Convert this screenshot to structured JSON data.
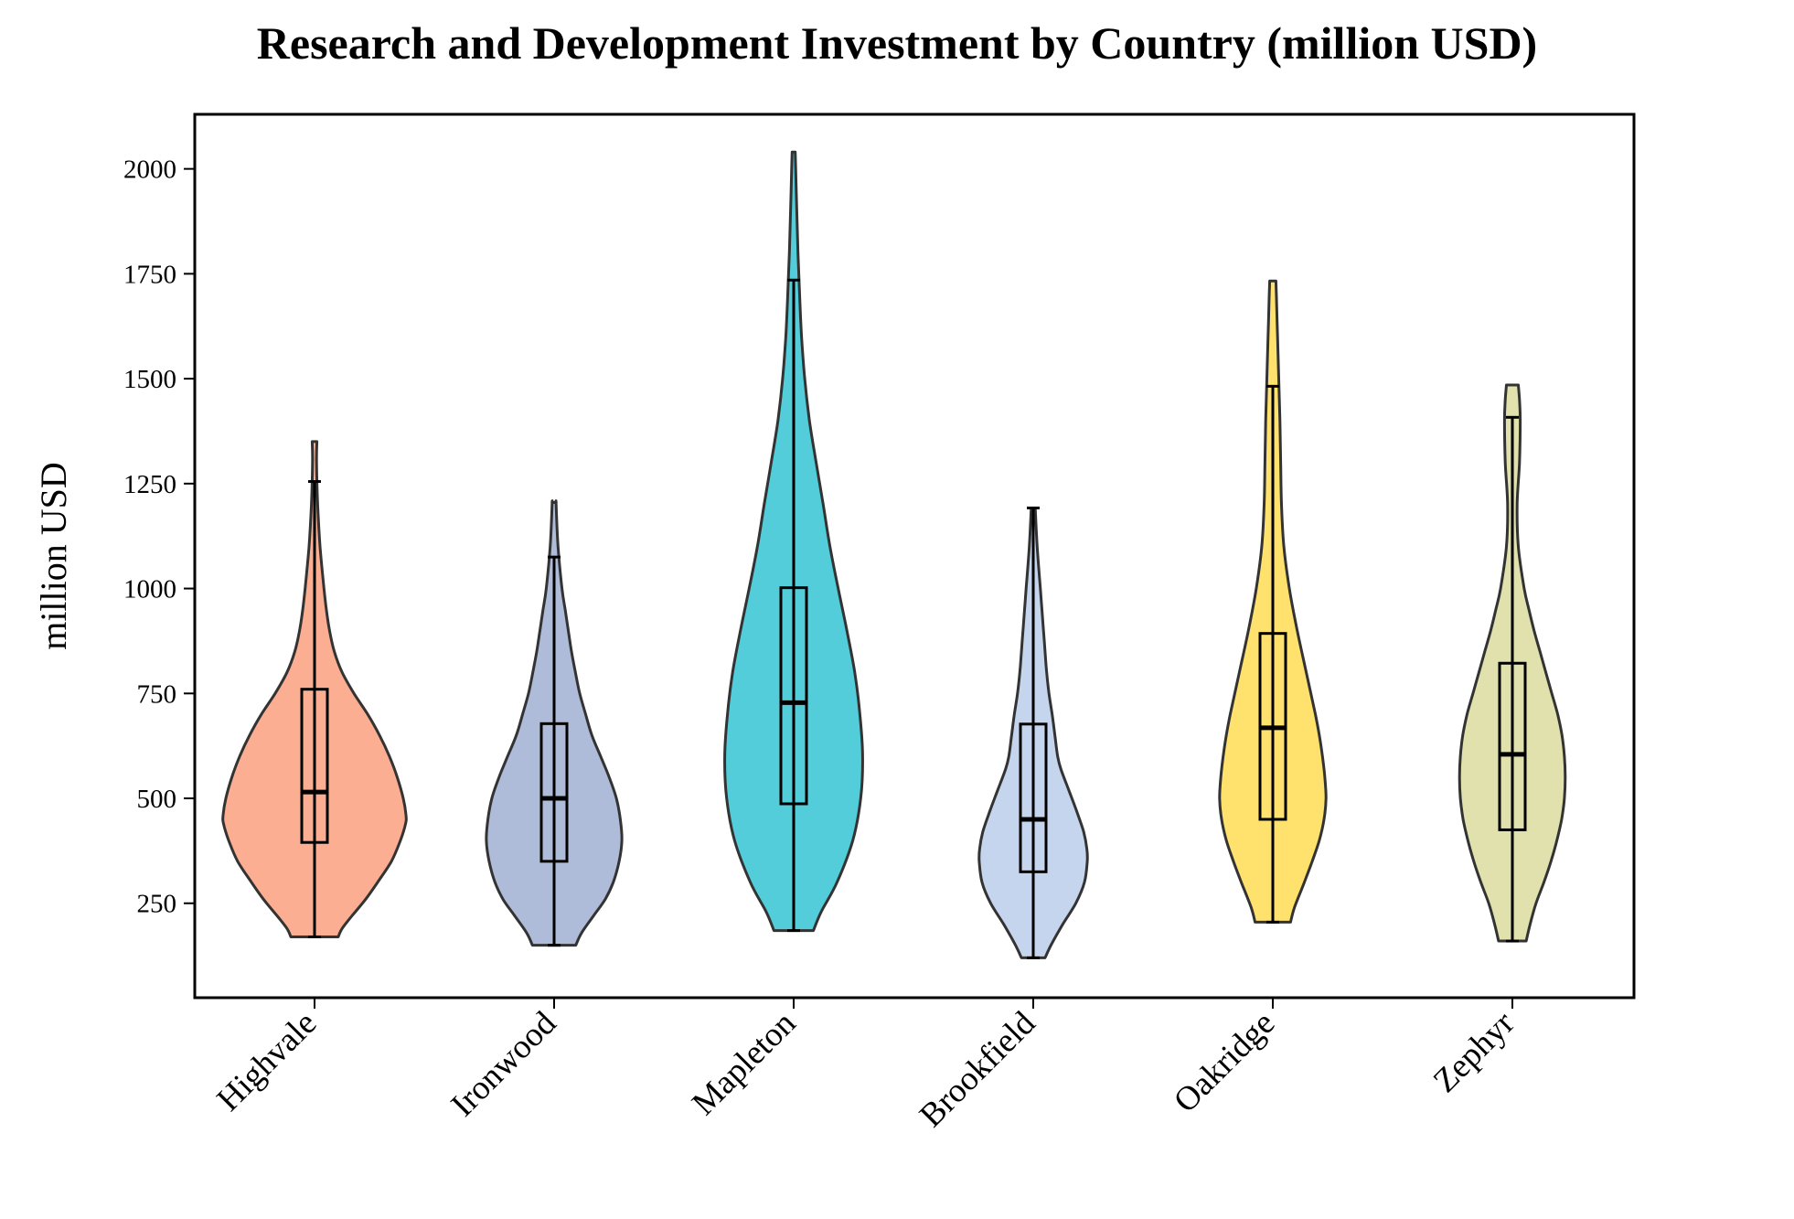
{
  "chart_data": {
    "type": "violin",
    "title": "Research and Development Investment by Country (million USD)",
    "xlabel": "",
    "ylabel": "million USD",
    "ylim": [
      25,
      2130
    ],
    "yticks": [
      250,
      500,
      750,
      1000,
      1250,
      1500,
      1750,
      2000
    ],
    "ytick_labels": [
      "250",
      "500",
      "750",
      "1000",
      "1250",
      "1500",
      "1750",
      "2000"
    ],
    "grid": false,
    "categories": [
      "Highvale",
      "Ironwood",
      "Mapleton",
      "Brookfield",
      "Oakridge",
      "Zephyr"
    ],
    "colors": [
      "#fa9a76",
      "#9aaad0",
      "#27c1d0",
      "#b6caea",
      "#ffd94a",
      "#d8d999"
    ],
    "series": [
      {
        "name": "Highvale",
        "min": 170,
        "q1": 395,
        "median": 515,
        "q3": 760,
        "max": 1255,
        "violin_max": 1350,
        "profile": [
          [
            170,
            60
          ],
          [
            190,
            70
          ],
          [
            220,
            95
          ],
          [
            260,
            130
          ],
          [
            300,
            160
          ],
          [
            350,
            195
          ],
          [
            400,
            218
          ],
          [
            440,
            231
          ],
          [
            460,
            232
          ],
          [
            500,
            225
          ],
          [
            550,
            210
          ],
          [
            600,
            190
          ],
          [
            650,
            165
          ],
          [
            700,
            135
          ],
          [
            750,
            100
          ],
          [
            800,
            70
          ],
          [
            850,
            50
          ],
          [
            900,
            38
          ],
          [
            950,
            30
          ],
          [
            1000,
            24
          ],
          [
            1100,
            14
          ],
          [
            1200,
            8
          ],
          [
            1300,
            5
          ],
          [
            1350,
            6
          ]
        ]
      },
      {
        "name": "Ironwood",
        "min": 150,
        "q1": 350,
        "median": 500,
        "q3": 678,
        "max": 1075,
        "violin_max": 1205,
        "profile": [
          [
            150,
            55
          ],
          [
            180,
            70
          ],
          [
            220,
            100
          ],
          [
            260,
            130
          ],
          [
            300,
            150
          ],
          [
            350,
            165
          ],
          [
            400,
            172
          ],
          [
            450,
            168
          ],
          [
            500,
            158
          ],
          [
            550,
            140
          ],
          [
            600,
            118
          ],
          [
            650,
            96
          ],
          [
            700,
            80
          ],
          [
            750,
            65
          ],
          [
            800,
            54
          ],
          [
            850,
            44
          ],
          [
            900,
            36
          ],
          [
            950,
            28
          ],
          [
            1000,
            20
          ],
          [
            1100,
            10
          ],
          [
            1200,
            5
          ],
          [
            1205,
            5
          ]
        ]
      },
      {
        "name": "Mapleton",
        "min": 185,
        "q1": 487,
        "median": 728,
        "q3": 1002,
        "max": 1735,
        "violin_max": 2040,
        "profile": [
          [
            185,
            50
          ],
          [
            230,
            70
          ],
          [
            300,
            110
          ],
          [
            400,
            150
          ],
          [
            500,
            170
          ],
          [
            600,
            175
          ],
          [
            700,
            168
          ],
          [
            800,
            155
          ],
          [
            900,
            135
          ],
          [
            1000,
            113
          ],
          [
            1100,
            92
          ],
          [
            1200,
            75
          ],
          [
            1300,
            57
          ],
          [
            1400,
            40
          ],
          [
            1500,
            28
          ],
          [
            1600,
            20
          ],
          [
            1700,
            15
          ],
          [
            1800,
            11
          ],
          [
            1900,
            8
          ],
          [
            2000,
            5
          ],
          [
            2040,
            4
          ]
        ]
      },
      {
        "name": "Brookfield",
        "min": 120,
        "q1": 325,
        "median": 450,
        "q3": 677,
        "max": 1192,
        "violin_max": 1192,
        "profile": [
          [
            120,
            30
          ],
          [
            150,
            45
          ],
          [
            200,
            75
          ],
          [
            250,
            108
          ],
          [
            300,
            130
          ],
          [
            350,
            137
          ],
          [
            380,
            136
          ],
          [
            420,
            128
          ],
          [
            470,
            110
          ],
          [
            520,
            90
          ],
          [
            570,
            70
          ],
          [
            600,
            62
          ],
          [
            650,
            55
          ],
          [
            700,
            48
          ],
          [
            750,
            40
          ],
          [
            800,
            34
          ],
          [
            850,
            30
          ],
          [
            900,
            26
          ],
          [
            950,
            22
          ],
          [
            1000,
            18
          ],
          [
            1100,
            10
          ],
          [
            1192,
            5
          ]
        ]
      },
      {
        "name": "Oakridge",
        "min": 205,
        "q1": 450,
        "median": 668,
        "q3": 893,
        "max": 1482,
        "violin_max": 1733,
        "profile": [
          [
            205,
            45
          ],
          [
            240,
            55
          ],
          [
            300,
            80
          ],
          [
            350,
            100
          ],
          [
            400,
            118
          ],
          [
            450,
            130
          ],
          [
            500,
            135
          ],
          [
            550,
            132
          ],
          [
            600,
            126
          ],
          [
            650,
            118
          ],
          [
            700,
            108
          ],
          [
            800,
            85
          ],
          [
            900,
            62
          ],
          [
            1000,
            42
          ],
          [
            1100,
            28
          ],
          [
            1200,
            22
          ],
          [
            1300,
            20
          ],
          [
            1400,
            18
          ],
          [
            1500,
            15
          ],
          [
            1600,
            12
          ],
          [
            1700,
            9
          ],
          [
            1733,
            8
          ]
        ]
      },
      {
        "name": "Zephyr",
        "min": 160,
        "q1": 425,
        "median": 605,
        "q3": 822,
        "max": 1408,
        "violin_max": 1485,
        "profile": [
          [
            160,
            35
          ],
          [
            200,
            45
          ],
          [
            250,
            60
          ],
          [
            300,
            80
          ],
          [
            350,
            98
          ],
          [
            400,
            113
          ],
          [
            450,
            125
          ],
          [
            500,
            132
          ],
          [
            550,
            134
          ],
          [
            600,
            132
          ],
          [
            650,
            126
          ],
          [
            700,
            115
          ],
          [
            750,
            100
          ],
          [
            800,
            85
          ],
          [
            850,
            70
          ],
          [
            900,
            55
          ],
          [
            950,
            42
          ],
          [
            1000,
            30
          ],
          [
            1100,
            15
          ],
          [
            1200,
            12
          ],
          [
            1300,
            18
          ],
          [
            1400,
            20
          ],
          [
            1450,
            18
          ],
          [
            1485,
            15
          ]
        ]
      }
    ]
  }
}
